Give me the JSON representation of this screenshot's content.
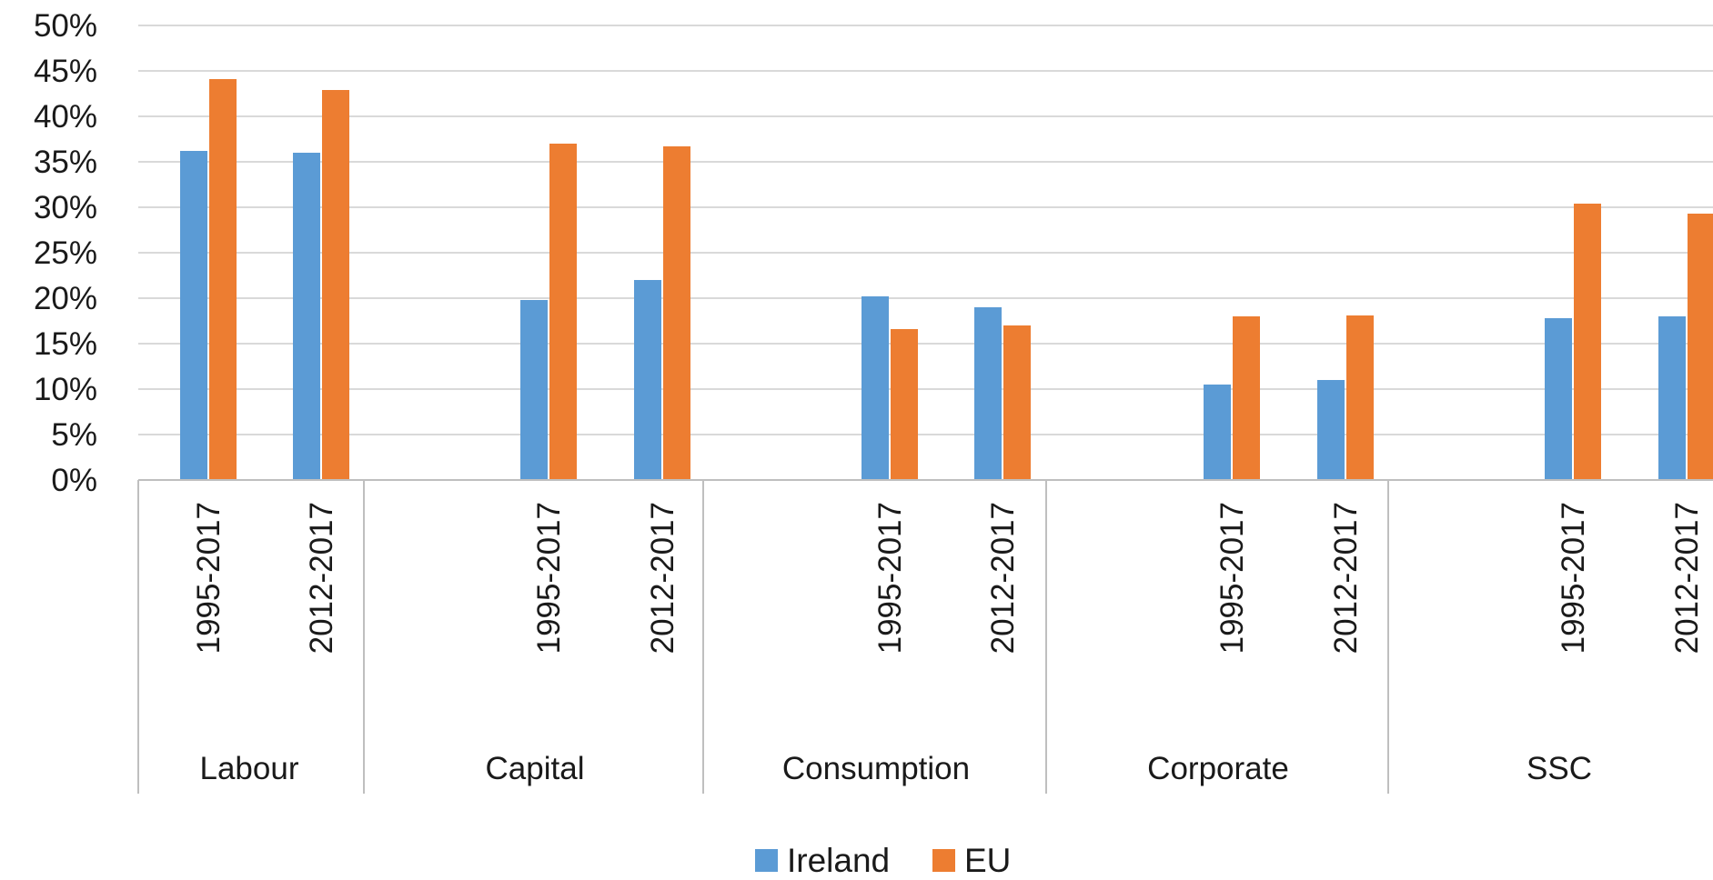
{
  "chart_data": {
    "type": "bar",
    "groups": [
      {
        "label": "Labour",
        "categories": [
          "1995-2017",
          "2012-2017"
        ]
      },
      {
        "label": "Capital",
        "categories": [
          "1995-2017",
          "2012-2017"
        ]
      },
      {
        "label": "Consumption",
        "categories": [
          "1995-2017",
          "2012-2017"
        ]
      },
      {
        "label": "Corporate",
        "categories": [
          "1995-2017",
          "2012-2017"
        ]
      },
      {
        "label": "SSC",
        "categories": [
          "1995-2017",
          "2012-2017"
        ]
      }
    ],
    "series": [
      {
        "name": "Ireland",
        "color": "#5b9bd5",
        "values": [
          36.2,
          36.0,
          19.8,
          22.0,
          20.2,
          19.0,
          10.5,
          11.0,
          17.8,
          18.0
        ]
      },
      {
        "name": "EU",
        "color": "#ed7d31",
        "values": [
          44.1,
          42.9,
          37.0,
          36.7,
          16.6,
          17.0,
          18.0,
          18.1,
          30.4,
          29.3
        ]
      }
    ],
    "y_ticks": [
      "0%",
      "5%",
      "10%",
      "15%",
      "20%",
      "25%",
      "30%",
      "35%",
      "40%",
      "45%",
      "50%"
    ],
    "ylim": [
      0,
      50
    ],
    "grid": true,
    "legend_position": "bottom"
  }
}
